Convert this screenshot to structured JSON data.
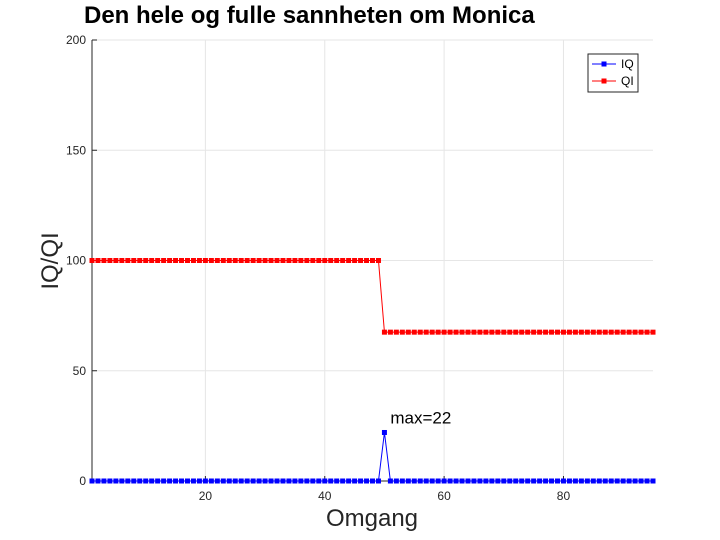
{
  "chart_data": {
    "type": "line",
    "title": "Den hele og fulle sannheten om Monica",
    "xlabel": "Omgang",
    "ylabel": "IQ/QI",
    "xlim": [
      1,
      95
    ],
    "ylim": [
      0,
      200
    ],
    "xticks": [
      20,
      40,
      60,
      80
    ],
    "yticks": [
      0,
      50,
      100,
      150,
      200
    ],
    "grid": true,
    "legend_position": "top-right",
    "x": [
      1,
      2,
      3,
      4,
      5,
      6,
      7,
      8,
      9,
      10,
      11,
      12,
      13,
      14,
      15,
      16,
      17,
      18,
      19,
      20,
      21,
      22,
      23,
      24,
      25,
      26,
      27,
      28,
      29,
      30,
      31,
      32,
      33,
      34,
      35,
      36,
      37,
      38,
      39,
      40,
      41,
      42,
      43,
      44,
      45,
      46,
      47,
      48,
      49,
      50,
      51,
      52,
      53,
      54,
      55,
      56,
      57,
      58,
      59,
      60,
      61,
      62,
      63,
      64,
      65,
      66,
      67,
      68,
      69,
      70,
      71,
      72,
      73,
      74,
      75,
      76,
      77,
      78,
      79,
      80,
      81,
      82,
      83,
      84,
      85,
      86,
      87,
      88,
      89,
      90,
      91,
      92,
      93,
      94,
      95
    ],
    "series": [
      {
        "name": "IQ",
        "color": "#0000ff",
        "values": [
          0,
          0,
          0,
          0,
          0,
          0,
          0,
          0,
          0,
          0,
          0,
          0,
          0,
          0,
          0,
          0,
          0,
          0,
          0,
          0,
          0,
          0,
          0,
          0,
          0,
          0,
          0,
          0,
          0,
          0,
          0,
          0,
          0,
          0,
          0,
          0,
          0,
          0,
          0,
          0,
          0,
          0,
          0,
          0,
          0,
          0,
          0,
          0,
          0,
          22,
          0,
          0,
          0,
          0,
          0,
          0,
          0,
          0,
          0,
          0,
          0,
          0,
          0,
          0,
          0,
          0,
          0,
          0,
          0,
          0,
          0,
          0,
          0,
          0,
          0,
          0,
          0,
          0,
          0,
          0,
          0,
          0,
          0,
          0,
          0,
          0,
          0,
          0,
          0,
          0,
          0,
          0,
          0,
          0,
          0
        ]
      },
      {
        "name": "QI",
        "color": "#ff0000",
        "values": [
          100,
          100,
          100,
          100,
          100,
          100,
          100,
          100,
          100,
          100,
          100,
          100,
          100,
          100,
          100,
          100,
          100,
          100,
          100,
          100,
          100,
          100,
          100,
          100,
          100,
          100,
          100,
          100,
          100,
          100,
          100,
          100,
          100,
          100,
          100,
          100,
          100,
          100,
          100,
          100,
          100,
          100,
          100,
          100,
          100,
          100,
          100,
          100,
          100,
          67.5,
          67.5,
          67.5,
          67.5,
          67.5,
          67.5,
          67.5,
          67.5,
          67.5,
          67.5,
          67.5,
          67.5,
          67.5,
          67.5,
          67.5,
          67.5,
          67.5,
          67.5,
          67.5,
          67.5,
          67.5,
          67.5,
          67.5,
          67.5,
          67.5,
          67.5,
          67.5,
          67.5,
          67.5,
          67.5,
          67.5,
          67.5,
          67.5,
          67.5,
          67.5,
          67.5,
          67.5,
          67.5,
          67.5,
          67.5,
          67.5,
          67.5,
          67.5,
          67.5,
          67.5,
          67.5
        ]
      }
    ],
    "annotations": [
      {
        "text": "max=22",
        "x": 51,
        "y": 26
      }
    ]
  }
}
